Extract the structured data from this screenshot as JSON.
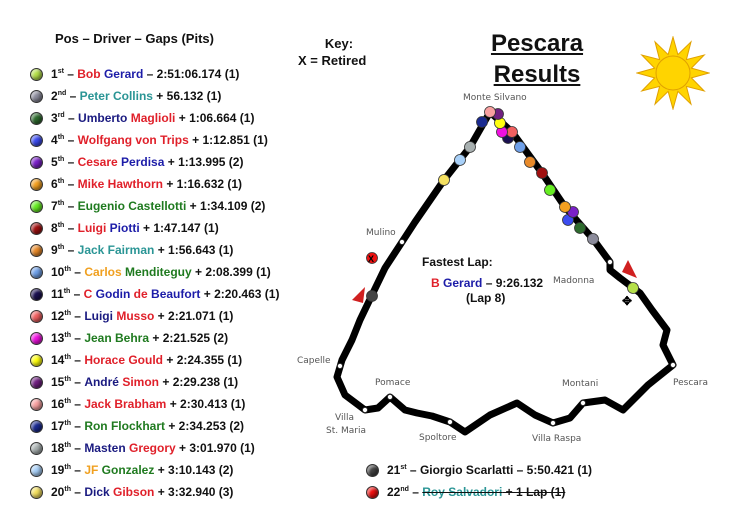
{
  "header": "Pos – Driver – Gaps (Pits)",
  "key": {
    "title": "Key:",
    "entry": "X = Retired"
  },
  "title": {
    "line1": "Pescara",
    "line2": "Results"
  },
  "colors": {
    "red": "#e0202a",
    "blue": "#1c1ca8",
    "navy": "#1a1a80",
    "teal": "#2a9595",
    "green": "#1f7a1f",
    "orange": "#f0a020"
  },
  "drivers": [
    {
      "pos": "1",
      "sup": "st",
      "name": [
        [
          "Bob",
          "red"
        ],
        [
          "Gerard",
          "blue"
        ]
      ],
      "sep": " – ",
      "gap": "2:51:06.174 (1)",
      "ball": "#b5e04a"
    },
    {
      "pos": "2",
      "sup": "nd",
      "name": [
        [
          "Peter Collins",
          "teal"
        ]
      ],
      "sep": " + ",
      "gap": "56.132 (1)",
      "ball": "#8c8c9c"
    },
    {
      "pos": "3",
      "sup": "rd",
      "name": [
        [
          "Umberto",
          "navy"
        ],
        [
          "Maglioli",
          "red"
        ]
      ],
      "sep": " + ",
      "gap": "1:06.664 (1)",
      "ball": "#2e6b2e"
    },
    {
      "pos": "4",
      "sup": "th",
      "name": [
        [
          "Wolfgang von Trips",
          "red"
        ]
      ],
      "sep": " + ",
      "gap": "1:12.851 (1)",
      "ball": "#3c4cf0"
    },
    {
      "pos": "5",
      "sup": "th",
      "name": [
        [
          "Cesare",
          "red"
        ],
        [
          "Perdisa",
          "blue"
        ]
      ],
      "sep": " + ",
      "gap": "1:13.995 (2)",
      "ball": "#7a20c8"
    },
    {
      "pos": "6",
      "sup": "th",
      "name": [
        [
          "Mike Hawthorn",
          "red"
        ]
      ],
      "sep": " + ",
      "gap": "1:16.632 (1)",
      "ball": "#f4a020"
    },
    {
      "pos": "7",
      "sup": "th",
      "name": [
        [
          "Eugenio Castellotti",
          "green"
        ]
      ],
      "sep": " + ",
      "gap": "1:34.109 (2)",
      "ball": "#66ee22"
    },
    {
      "pos": "8",
      "sup": "th",
      "name": [
        [
          "Luigi",
          "red"
        ],
        [
          "Piotti",
          "blue"
        ]
      ],
      "sep": " + ",
      "gap": "1:47.147 (1)",
      "ball": "#a01010"
    },
    {
      "pos": "9",
      "sup": "th",
      "name": [
        [
          "Jack Fairman",
          "teal"
        ]
      ],
      "sep": " + ",
      "gap": "1:56.643 (1)",
      "ball": "#e88a2a"
    },
    {
      "pos": "10",
      "sup": "th",
      "name": [
        [
          "Carlos",
          "orange"
        ],
        [
          "Menditeguy",
          "green"
        ]
      ],
      "sep": " + ",
      "gap": "2:08.399 (1)",
      "ball": "#6fa0e8"
    },
    {
      "pos": "11",
      "sup": "th",
      "name": [
        [
          "C",
          "red"
        ],
        [
          "Godin",
          "blue"
        ],
        [
          "de",
          "red"
        ],
        [
          "Beaufort",
          "blue"
        ]
      ],
      "sep": " + ",
      "gap": "2:20.463 (1)",
      "ball": "#1a1050"
    },
    {
      "pos": "12",
      "sup": "th",
      "name": [
        [
          "Luigi",
          "navy"
        ],
        [
          "Musso",
          "red"
        ]
      ],
      "sep": " + ",
      "gap": "2:21.071 (1)",
      "ball": "#f06060"
    },
    {
      "pos": "13",
      "sup": "th",
      "name": [
        [
          "Jean Behra",
          "green"
        ]
      ],
      "sep": " + ",
      "gap": "2:21.525 (2)",
      "ball": "#f010e0"
    },
    {
      "pos": "14",
      "sup": "th",
      "name": [
        [
          "Horace Gould",
          "red"
        ]
      ],
      "sep": " + ",
      "gap": "2:24.355 (1)",
      "ball": "#ffff10"
    },
    {
      "pos": "15",
      "sup": "th",
      "name": [
        [
          "André",
          "navy"
        ],
        [
          "Simon",
          "red"
        ]
      ],
      "sep": " + ",
      "gap": "2:29.238 (1)",
      "ball": "#702080"
    },
    {
      "pos": "16",
      "sup": "th",
      "name": [
        [
          "Jack Brabham",
          "red"
        ]
      ],
      "sep": " + ",
      "gap": "2:30.413 (1)",
      "ball": "#f8a0a0"
    },
    {
      "pos": "17",
      "sup": "th",
      "name": [
        [
          "Ron Flockhart",
          "green"
        ]
      ],
      "sep": " + ",
      "gap": "2:34.253 (2)",
      "ball": "#1a2a90"
    },
    {
      "pos": "18",
      "sup": "th",
      "name": [
        [
          "Masten",
          "navy"
        ],
        [
          "Gregory",
          "red"
        ]
      ],
      "sep": " + ",
      "gap": "3:01.970 (1)",
      "ball": "#a8b0b0"
    },
    {
      "pos": "19",
      "sup": "th",
      "name": [
        [
          "JF",
          "orange"
        ],
        [
          "Gonzalez",
          "green"
        ]
      ],
      "sep": " + ",
      "gap": "3:10.143 (2)",
      "ball": "#a8d0f8"
    },
    {
      "pos": "20",
      "sup": "th",
      "name": [
        [
          "Dick",
          "navy"
        ],
        [
          "Gibson",
          "red"
        ]
      ],
      "sep": " + ",
      "gap": "3:32.940 (3)",
      "ball": "#f4e060"
    },
    {
      "pos": "21",
      "sup": "st",
      "name": [
        [
          "Giorgio Scarlatti",
          "#111"
        ]
      ],
      "sep": " – ",
      "gap": "5:50.421 (1)",
      "ball": "#444"
    },
    {
      "pos": "22",
      "sup": "nd",
      "name": [
        [
          "Roy Salvadori",
          "teal"
        ]
      ],
      "sep": " + ",
      "gap": "1 Lap (1)",
      "ball": "#ee1010",
      "retired": true
    }
  ],
  "fastest_lap": {
    "title": "Fastest Lap:",
    "first": "B",
    "last": "Gerard",
    "time": "– 9:26.132",
    "lap": "(Lap 8)"
  },
  "track_labels": [
    "Monte Silvano",
    "Mulino",
    "Capelle",
    "Pomace",
    "Villa",
    "St. Maria",
    "Spoltore",
    "Villa Raspa",
    "Montani",
    "Pescara",
    "Madonna"
  ],
  "retired_marker": "X"
}
